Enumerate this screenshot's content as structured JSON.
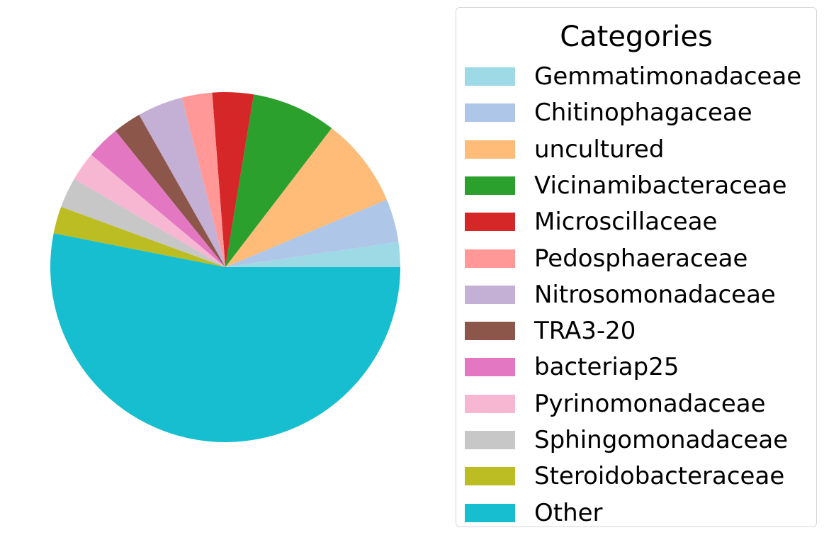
{
  "chart_data": {
    "type": "pie",
    "title": "",
    "legend_title": "Categories",
    "legend_placement": "right",
    "start_angle_deg": 0,
    "direction": "counterclockwise",
    "slices": [
      {
        "label": "Gemmatimonadaceae",
        "value": 2.3,
        "color": "#9edae5"
      },
      {
        "label": "Chitinophagaceae",
        "value": 4.0,
        "color": "#aec7e8"
      },
      {
        "label": "uncultured",
        "value": 8.3,
        "color": "#ffbb78"
      },
      {
        "label": "Vicinamibacteraceae",
        "value": 7.8,
        "color": "#2ca02c"
      },
      {
        "label": "Microscillaceae",
        "value": 3.8,
        "color": "#d62728"
      },
      {
        "label": "Pedosphaeraceae",
        "value": 2.8,
        "color": "#ff9896"
      },
      {
        "label": "Nitrosomonadaceae",
        "value": 4.2,
        "color": "#c5b0d5"
      },
      {
        "label": "TRA3-20",
        "value": 2.6,
        "color": "#8c564b"
      },
      {
        "label": "bacteriap25",
        "value": 3.1,
        "color": "#e377c2"
      },
      {
        "label": "Pyrinomonadaceae",
        "value": 2.7,
        "color": "#f7b6d2"
      },
      {
        "label": "Sphingomonadaceae",
        "value": 2.8,
        "color": "#c7c7c7"
      },
      {
        "label": "Steroidobacteraceae",
        "value": 2.5,
        "color": "#bcbd22"
      },
      {
        "label": "Other",
        "value": 53.1,
        "color": "#17becf"
      }
    ]
  }
}
